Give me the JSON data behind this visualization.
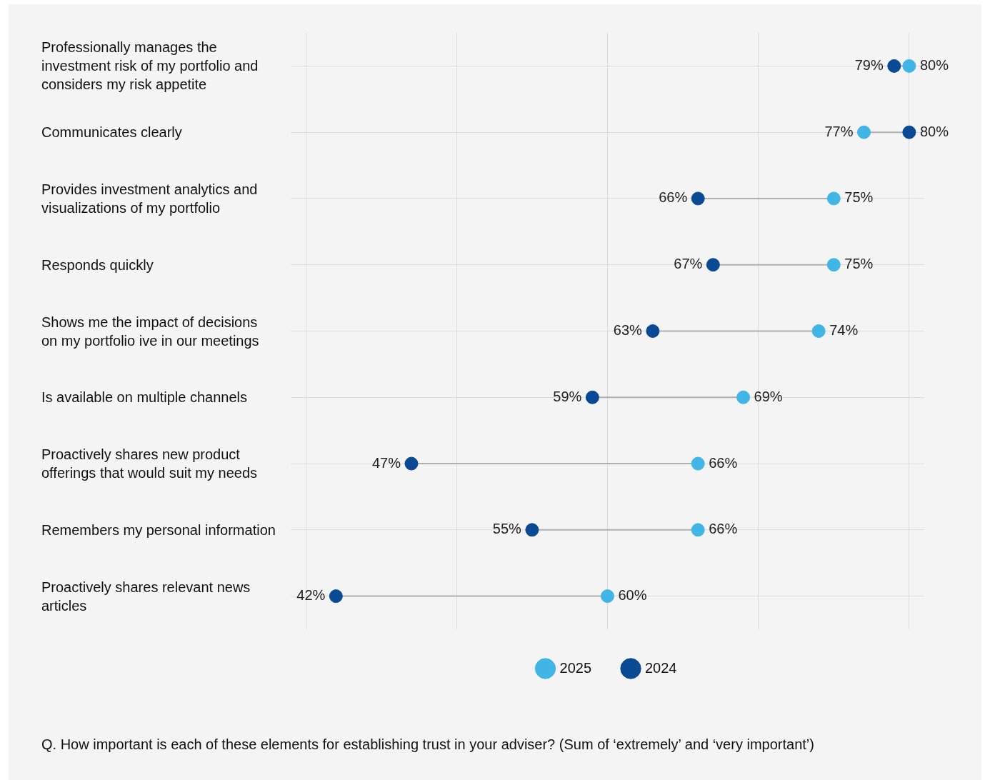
{
  "chart_data": {
    "type": "scatter",
    "orientation": "horizontal",
    "categories": [
      "Professionally manages the investment risk of my portfolio and considers my risk appetite",
      "Communicates clearly",
      "Provides investment analytics and visualizations of my portfolio",
      "Responds quickly",
      "Shows me the impact of decisions on my portfolio ive in our meetings",
      "Is available on multiple channels",
      "Proactively shares new product offerings that would suit my needs",
      "Remembers my personal information",
      "Proactively shares relevant news articles"
    ],
    "series": [
      {
        "name": "2025",
        "color": "#41b6e6",
        "values": [
          80,
          77,
          75,
          75,
          74,
          69,
          66,
          66,
          60
        ],
        "value_labels": [
          "80%",
          "77%",
          "75%",
          "75%",
          "74%",
          "69%",
          "66%",
          "66%",
          "60%"
        ]
      },
      {
        "name": "2024",
        "color": "#0a4a94",
        "values": [
          79,
          80,
          66,
          67,
          63,
          59,
          47,
          55,
          42
        ],
        "value_labels": [
          "79%",
          "80%",
          "66%",
          "67%",
          "63%",
          "59%",
          "47%",
          "55%",
          "42%"
        ]
      }
    ],
    "xlim": [
      39,
      81
    ],
    "xticks": [
      {
        "value": 40,
        "label": null
      },
      {
        "value": 50,
        "label": null
      },
      {
        "value": 60,
        "label": null
      },
      {
        "value": 70,
        "label": null
      },
      {
        "value": 80,
        "label": null
      }
    ],
    "tick_labels": "y",
    "grid": true,
    "legend": "bottom",
    "marker": "circle",
    "annotations": [
      "Q. How important is each of these elements for establishing trust in your adviser? (Sum of ‘extremely’ and ‘very important’)"
    ]
  }
}
